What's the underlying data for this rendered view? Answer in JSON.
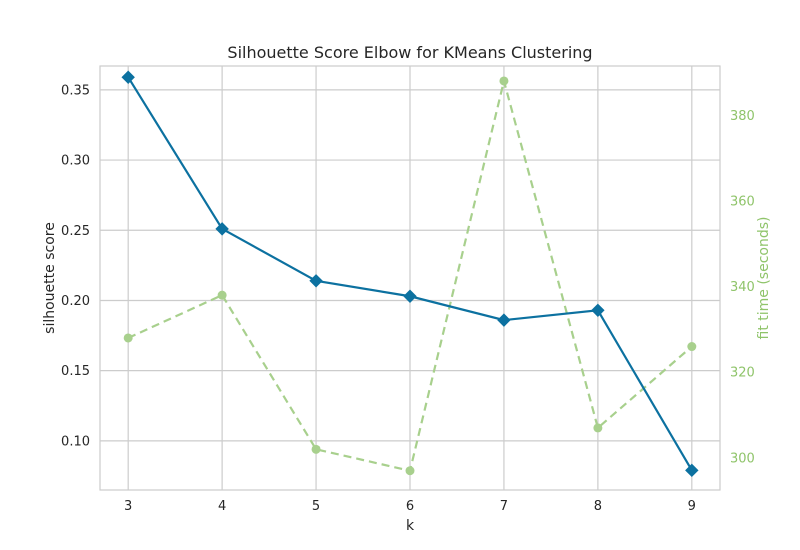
{
  "chart_data": {
    "type": "line",
    "title": "Silhouette Score Elbow for KMeans Clustering",
    "xlabel": "k",
    "ylabel": "silhouette score",
    "y2label": "fit time (seconds)",
    "x": [
      3,
      4,
      5,
      6,
      7,
      8,
      9
    ],
    "xticks": [
      "3",
      "4",
      "5",
      "6",
      "7",
      "8",
      "9"
    ],
    "xlim": [
      2.7,
      9.3
    ],
    "ylim": [
      0.065,
      0.367
    ],
    "y2lim": [
      292.5,
      391.5
    ],
    "yticks": [
      "0.10",
      "0.15",
      "0.20",
      "0.25",
      "0.30",
      "0.35"
    ],
    "y2ticks": [
      "300",
      "320",
      "340",
      "360",
      "380"
    ],
    "grid": true,
    "series": [
      {
        "axis": "left",
        "color": "#0c71a0",
        "marker": "diamond",
        "linestyle": "solid",
        "values": [
          0.359,
          0.251,
          0.214,
          0.203,
          0.186,
          0.193,
          0.079
        ]
      },
      {
        "axis": "right",
        "color": "#a8d08d",
        "marker": "circle",
        "linestyle": "dashed",
        "values": [
          328,
          338,
          302,
          297,
          388,
          307,
          326
        ]
      }
    ]
  }
}
